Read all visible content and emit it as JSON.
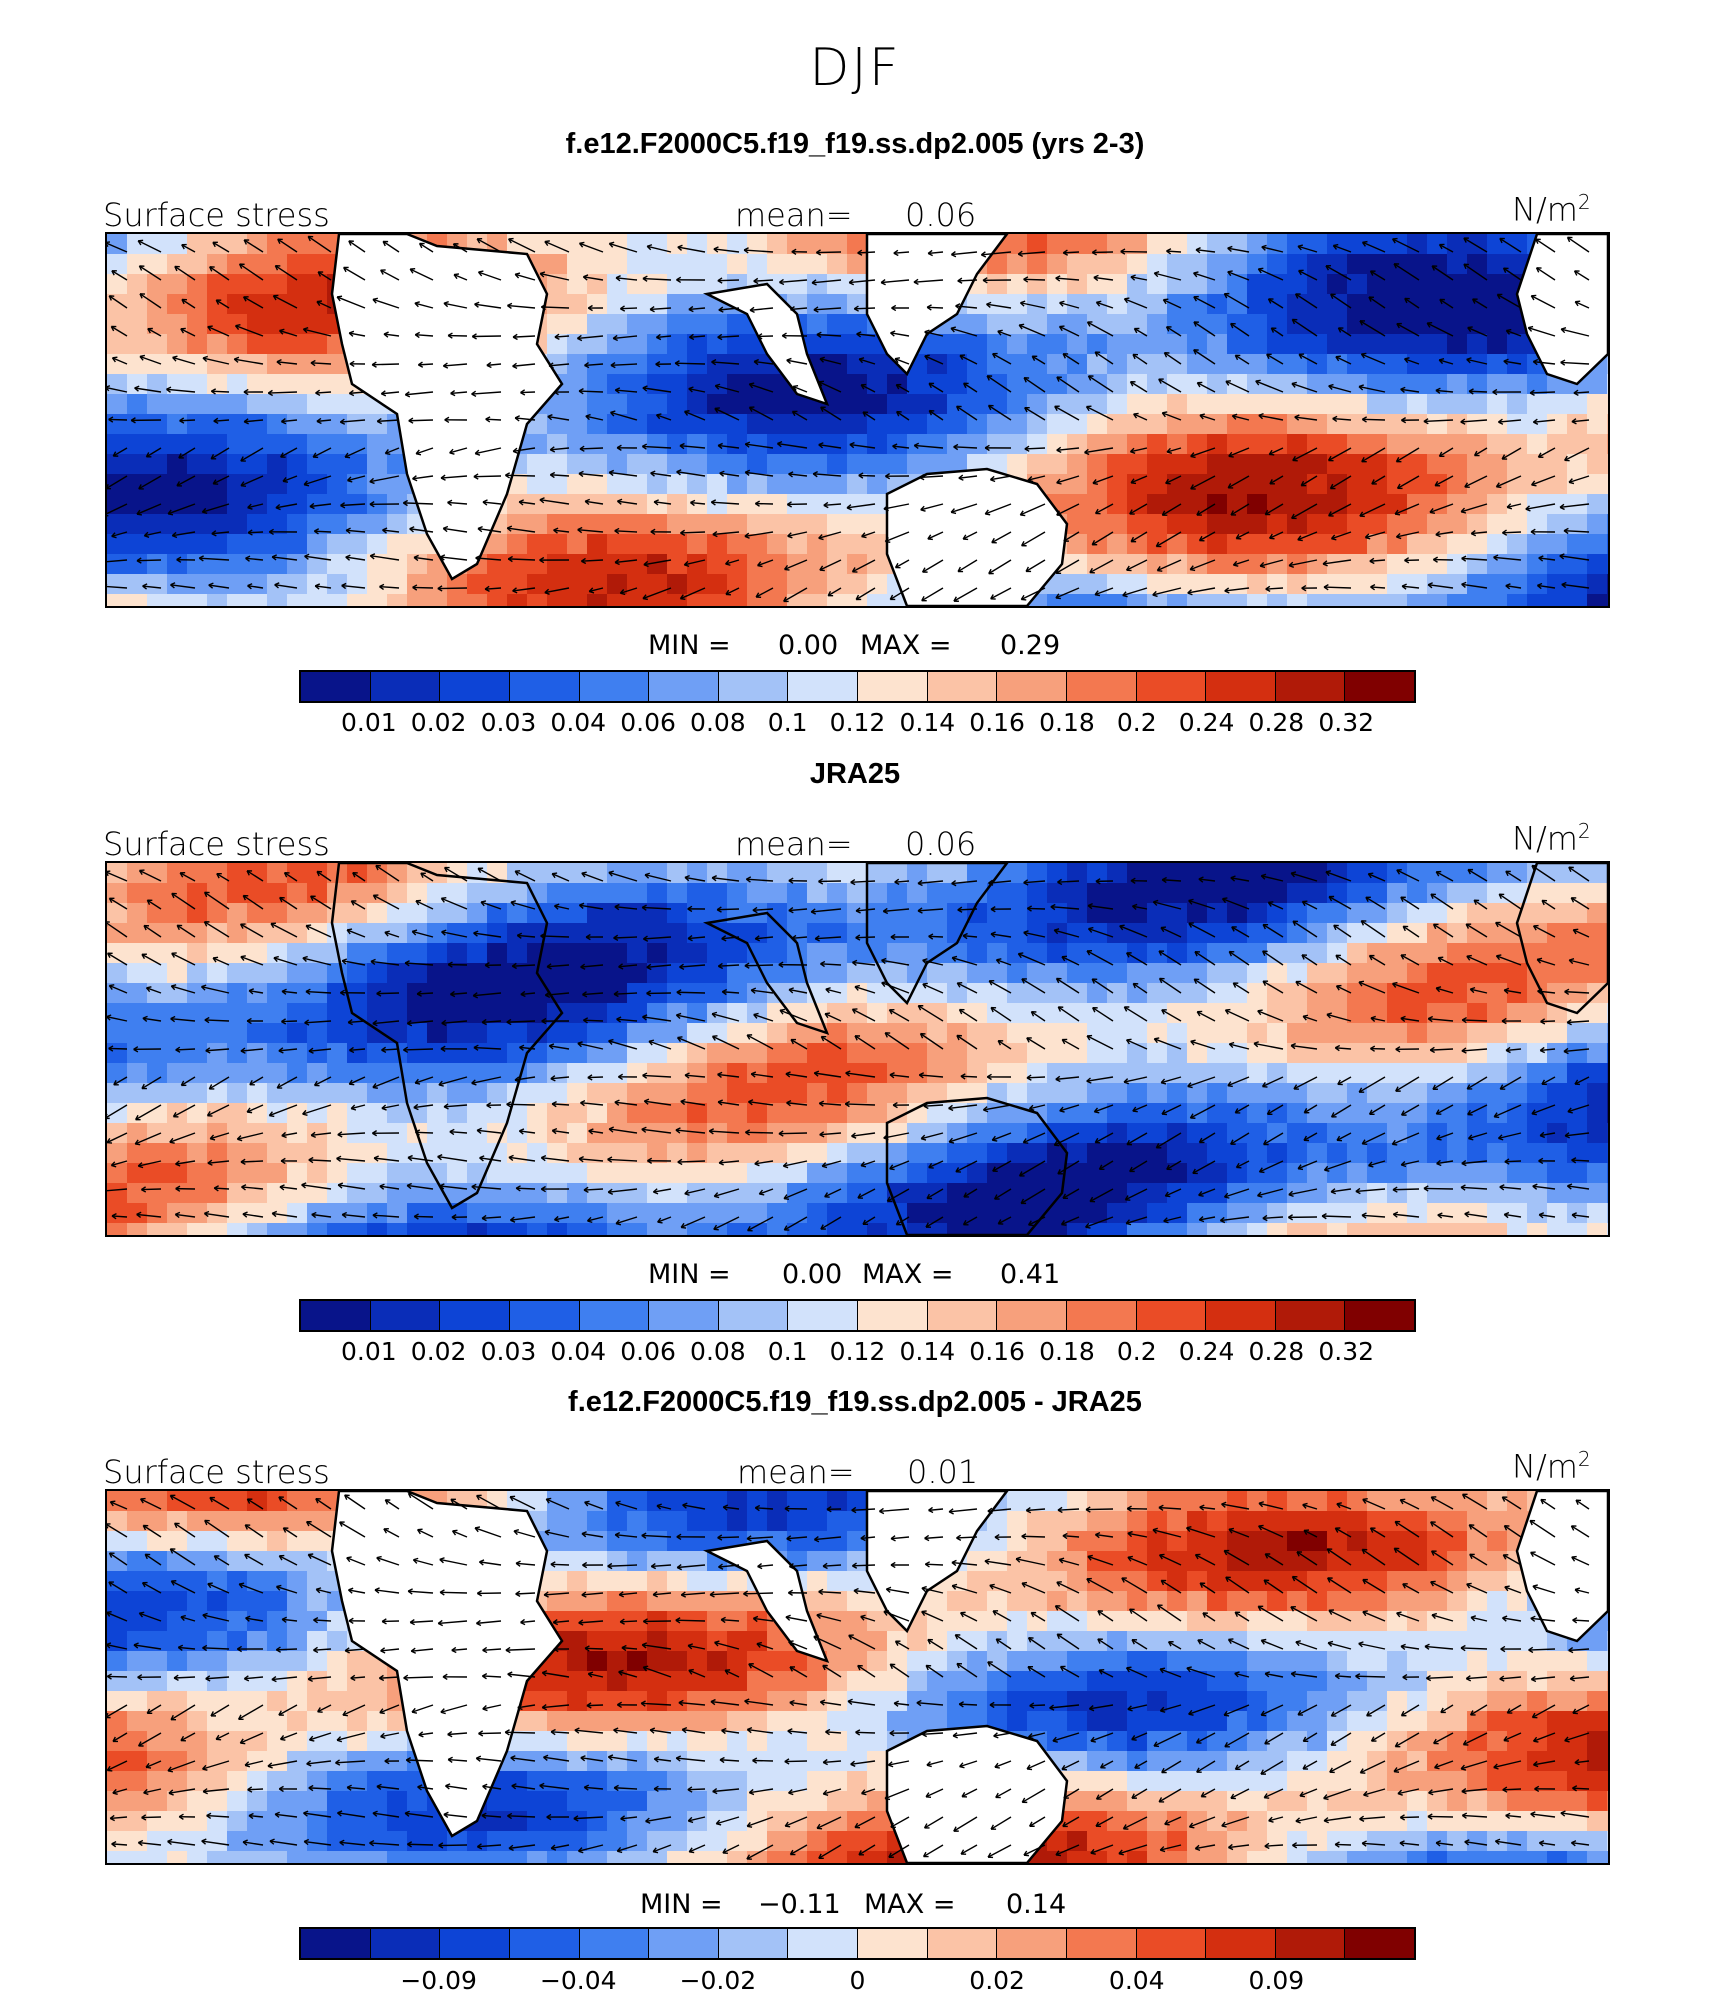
{
  "figure": {
    "title": "DJF"
  },
  "chart_data": [
    {
      "type": "heatmap",
      "title": "f.e12.F2000C5.f19_f19.ss.dp2.005 (yrs 2-3)",
      "left_label": "Surface stress",
      "mean_label": "mean=",
      "mean_value": "0.06",
      "units": "N/m",
      "units_exp": "2",
      "min_label": "MIN =",
      "min_value": "0.00",
      "max_label": "MAX =",
      "max_value": "0.29",
      "colorbar": {
        "colors": [
          "#08148a",
          "#0a2db8",
          "#0d44d6",
          "#1f5fe6",
          "#3f7ff0",
          "#6f9ff5",
          "#a3c2f7",
          "#d2e2fb",
          "#fde3cf",
          "#fbc3a6",
          "#f7a07c",
          "#f37850",
          "#ea4c26",
          "#d42f10",
          "#b01a08",
          "#800000"
        ],
        "tick_labels": [
          "0.01",
          "0.02",
          "0.03",
          "0.04",
          "0.06",
          "0.08",
          "0.1",
          "0.12",
          "0.14",
          "0.16",
          "0.18",
          "0.2",
          "0.24",
          "0.28",
          "0.32"
        ]
      }
    },
    {
      "type": "heatmap",
      "title": "JRA25",
      "left_label": "Surface stress",
      "mean_label": "mean=",
      "mean_value": "0.06",
      "units": "N/m",
      "units_exp": "2",
      "min_label": "MIN =",
      "min_value": "0.00",
      "max_label": "MAX =",
      "max_value": "0.41",
      "colorbar": {
        "colors": [
          "#08148a",
          "#0a2db8",
          "#0d44d6",
          "#1f5fe6",
          "#3f7ff0",
          "#6f9ff5",
          "#a3c2f7",
          "#d2e2fb",
          "#fde3cf",
          "#fbc3a6",
          "#f7a07c",
          "#f37850",
          "#ea4c26",
          "#d42f10",
          "#b01a08",
          "#800000"
        ],
        "tick_labels": [
          "0.01",
          "0.02",
          "0.03",
          "0.04",
          "0.06",
          "0.08",
          "0.1",
          "0.12",
          "0.14",
          "0.16",
          "0.18",
          "0.2",
          "0.24",
          "0.28",
          "0.32"
        ]
      }
    },
    {
      "type": "heatmap",
      "title": "f.e12.F2000C5.f19_f19.ss.dp2.005 - JRA25",
      "left_label": "Surface stress",
      "mean_label": "mean=",
      "mean_value": "0.01",
      "units": "N/m",
      "units_exp": "2",
      "min_label": "MIN =",
      "min_value": "−0.11",
      "max_label": "MAX =",
      "max_value": "0.14",
      "colorbar": {
        "colors": [
          "#08148a",
          "#0a2db8",
          "#0d44d6",
          "#1f5fe6",
          "#3f7ff0",
          "#6f9ff5",
          "#a3c2f7",
          "#d2e2fb",
          "#fde3cf",
          "#fbc3a6",
          "#f7a07c",
          "#f37850",
          "#ea4c26",
          "#d42f10",
          "#b01a08",
          "#800000"
        ],
        "tick_labels": [
          "",
          "−0.09",
          "",
          "−0.04",
          "",
          "−0.02",
          "",
          "0",
          "",
          "0.02",
          "",
          "0.04",
          "",
          "0.09",
          ""
        ]
      }
    }
  ]
}
